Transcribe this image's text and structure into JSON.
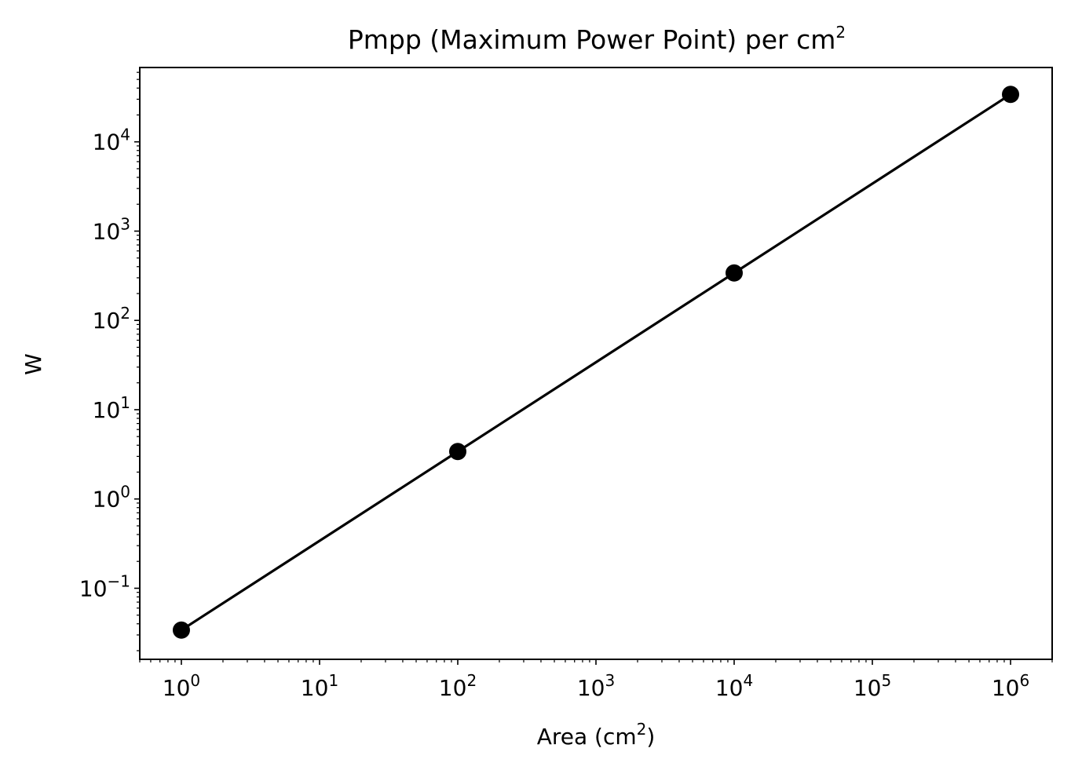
{
  "chart_data": {
    "type": "line",
    "title": "Pmpp (Maximum Power Point) per cm",
    "title_superscript": "2",
    "xlabel": "Area (cm",
    "xlabel_superscript": "2",
    "xlabel_suffix": ")",
    "ylabel": "W",
    "xscale": "log",
    "yscale": "log",
    "xlim": [
      0.5,
      2000000
    ],
    "ylim": [
      0.016,
      68000
    ],
    "grid": false,
    "legend": null,
    "x_ticks": [
      {
        "value": 1,
        "base": "10",
        "exp": "0"
      },
      {
        "value": 10,
        "base": "10",
        "exp": "1"
      },
      {
        "value": 100,
        "base": "10",
        "exp": "2"
      },
      {
        "value": 1000,
        "base": "10",
        "exp": "3"
      },
      {
        "value": 10000,
        "base": "10",
        "exp": "4"
      },
      {
        "value": 100000,
        "base": "10",
        "exp": "5"
      },
      {
        "value": 1000000,
        "base": "10",
        "exp": "6"
      }
    ],
    "y_ticks": [
      {
        "value": 0.1,
        "base": "10",
        "exp": "−1"
      },
      {
        "value": 1,
        "base": "10",
        "exp": "0"
      },
      {
        "value": 10,
        "base": "10",
        "exp": "1"
      },
      {
        "value": 100,
        "base": "10",
        "exp": "2"
      },
      {
        "value": 1000,
        "base": "10",
        "exp": "3"
      },
      {
        "value": 10000,
        "base": "10",
        "exp": "4"
      }
    ],
    "series": [
      {
        "color": "#000000",
        "marker": "circle",
        "x": [
          1,
          100,
          10000,
          1000000
        ],
        "y": [
          0.034,
          3.4,
          340,
          34000
        ]
      }
    ]
  }
}
